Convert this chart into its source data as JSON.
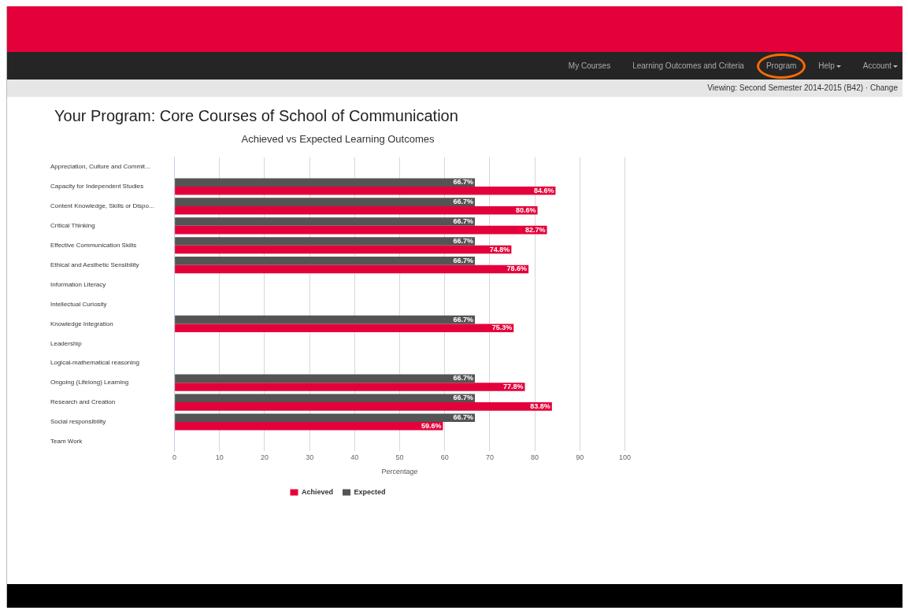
{
  "chart_data": {
    "type": "bar",
    "orientation": "horizontal",
    "title": "Your Program: Core Courses of School of Communication",
    "subtitle": "Achieved vs Expected Learning Outcomes",
    "xlabel": "Percentage",
    "categories": [
      "Appreciation, Culture and Commit...",
      "Capacity for Independent Studies",
      "Content Knowledge, Skills or Dispo...",
      "Critical Thinking",
      "Effective Communication Skills",
      "Ethical and Aesthetic Sensibility",
      "Information Literacy",
      "Intellectual Curiosity",
      "Knowledge Integration",
      "Leadership",
      "Logical-mathematical reasoning",
      "Ongoing (Lifelong) Learning",
      "Research and Creation",
      "Social responsibility",
      "Team Work"
    ],
    "series": [
      {
        "name": "Expected",
        "color": "#545454",
        "values": [
          null,
          66.7,
          66.7,
          66.7,
          66.7,
          66.7,
          null,
          null,
          66.7,
          null,
          null,
          66.7,
          66.7,
          66.7,
          null
        ],
        "value_labels": [
          null,
          "66.7%",
          "66.7%",
          "66.7%",
          "66.7%",
          "66.7%",
          null,
          null,
          "66.7%",
          null,
          null,
          "66.7%",
          "66.7%",
          "66.7%",
          null
        ]
      },
      {
        "name": "Achieved",
        "color": "#e4003a",
        "values": [
          null,
          84.6,
          80.6,
          82.7,
          74.8,
          78.6,
          null,
          null,
          75.3,
          null,
          null,
          77.8,
          83.8,
          59.6,
          null
        ],
        "value_labels": [
          null,
          "84.6%",
          "80.6%",
          "82.7%",
          "74.8%",
          "78.6%",
          null,
          null,
          "75.3%",
          null,
          null,
          "77.8%",
          "83.8%",
          "59.6%",
          null
        ]
      }
    ],
    "xlim": [
      0,
      100
    ],
    "xticks": [
      0,
      10,
      20,
      30,
      40,
      50,
      60,
      70,
      80,
      90,
      100
    ],
    "grid": "x",
    "legend": "bottom",
    "annotations": [
      "My Courses",
      "Learning Outcomes and Criteria",
      "Program",
      "Help",
      "Account",
      "Viewing: Second Semester 2014-2015 (B42) · Change"
    ]
  }
}
